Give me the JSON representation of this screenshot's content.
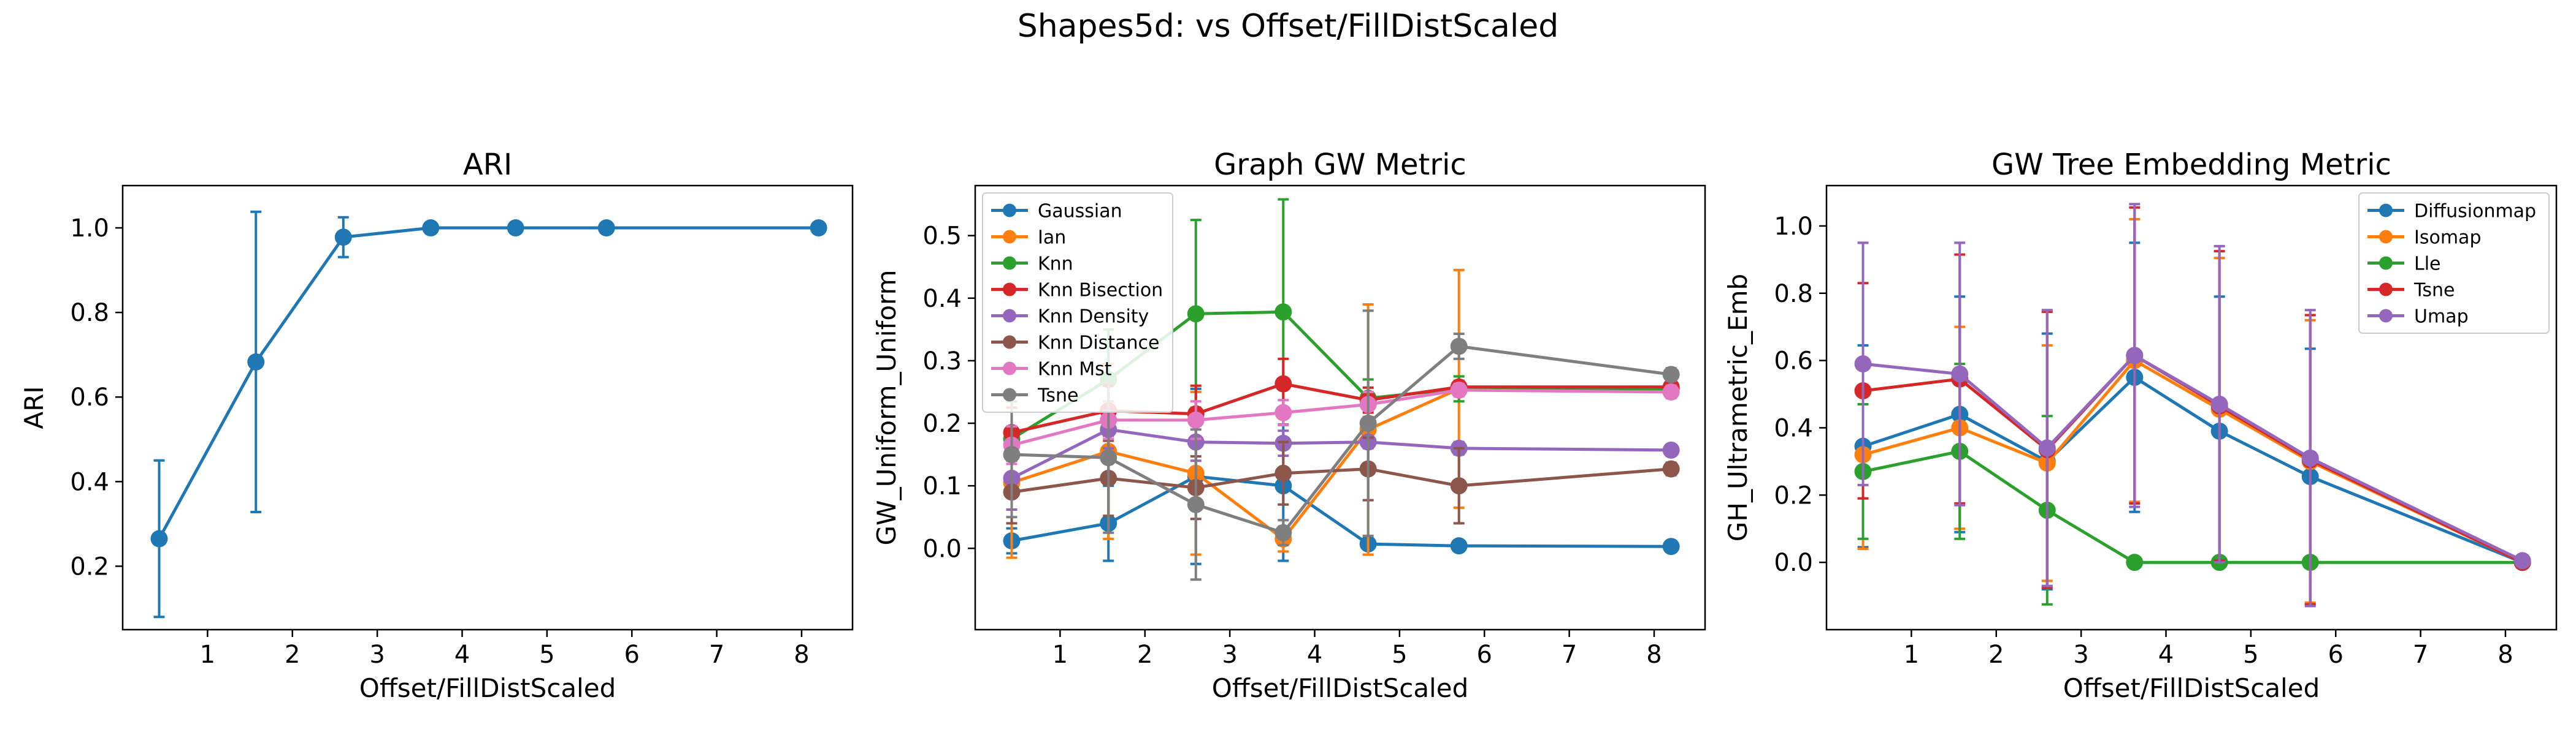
{
  "figure": {
    "suptitle": "Shapes5d: vs Offset/FillDistScaled"
  },
  "chart_data": [
    {
      "type": "line",
      "title": "ARI",
      "xlabel": "Offset/FillDistScaled",
      "ylabel": "ARI",
      "xlim": [
        0.0,
        8.6
      ],
      "ylim": [
        0.05,
        1.1
      ],
      "xticks": [
        1,
        2,
        3,
        4,
        5,
        6,
        7,
        8
      ],
      "yticks": [
        0.2,
        0.4,
        0.6,
        0.8,
        1.0
      ],
      "ytick_labels": [
        "0.2",
        "0.4",
        "0.6",
        "0.8",
        "1.0"
      ],
      "grid": false,
      "legend": null,
      "series": [
        {
          "color": "#1f77b4",
          "x": [
            0.43,
            1.57,
            2.6,
            3.63,
            4.63,
            5.7,
            8.2
          ],
          "y": [
            0.265,
            0.683,
            0.978,
            1.0,
            1.0,
            1.0,
            1.0
          ],
          "err": [
            0.185,
            0.355,
            0.047,
            0.0,
            0.0,
            0.0,
            0.0
          ]
        }
      ]
    },
    {
      "type": "line",
      "title": "Graph GW Metric",
      "xlabel": "Offset/FillDistScaled",
      "ylabel": "GW_Uniform_Uniform",
      "xlim": [
        0.0,
        8.6
      ],
      "ylim": [
        -0.13,
        0.58
      ],
      "xticks": [
        1,
        2,
        3,
        4,
        5,
        6,
        7,
        8
      ],
      "yticks": [
        0.0,
        0.1,
        0.2,
        0.3,
        0.4,
        0.5
      ],
      "ytick_labels": [
        "0.0",
        "0.1",
        "0.2",
        "0.3",
        "0.4",
        "0.5"
      ],
      "grid": false,
      "legend": "top-left",
      "series": [
        {
          "name": "Gaussian",
          "color": "#1f77b4",
          "x": [
            0.43,
            1.57,
            2.6,
            3.63,
            4.63,
            5.7,
            8.2
          ],
          "y": [
            0.012,
            0.04,
            0.115,
            0.1,
            0.007,
            0.004,
            0.003
          ],
          "err": [
            0.02,
            0.06,
            0.14,
            0.12,
            0.005,
            0.004,
            0.003
          ]
        },
        {
          "name": "Ian",
          "color": "#ff7f0e",
          "x": [
            0.43,
            1.57,
            2.6,
            3.63,
            4.63,
            5.7,
            8.2
          ],
          "y": [
            0.105,
            0.155,
            0.12,
            0.015,
            0.19,
            0.255,
            0.255
          ],
          "err": [
            0.12,
            0.14,
            0.13,
            0.02,
            0.2,
            0.19,
            0.01
          ]
        },
        {
          "name": "Knn",
          "color": "#2ca02c",
          "x": [
            0.43,
            1.57,
            2.6,
            3.63,
            4.63,
            5.7,
            8.2
          ],
          "y": [
            0.175,
            0.27,
            0.375,
            0.378,
            0.24,
            0.255,
            0.255
          ],
          "err": [
            0.06,
            0.08,
            0.15,
            0.18,
            0.03,
            0.02,
            0.01
          ]
        },
        {
          "name": "Knn Bisection",
          "color": "#d62728",
          "x": [
            0.43,
            1.57,
            2.6,
            3.63,
            4.63,
            5.7,
            8.2
          ],
          "y": [
            0.185,
            0.22,
            0.215,
            0.263,
            0.237,
            0.258,
            0.258
          ],
          "err": [
            0.04,
            0.04,
            0.045,
            0.04,
            0.02,
            0.01,
            0.01
          ]
        },
        {
          "name": "Knn Density",
          "color": "#9467bd",
          "x": [
            0.43,
            1.57,
            2.6,
            3.63,
            4.63,
            5.7,
            8.2
          ],
          "y": [
            0.112,
            0.19,
            0.17,
            0.168,
            0.17,
            0.16,
            0.157
          ],
          "err": [
            0.05,
            0.03,
            0.03,
            0.02,
            0.01,
            0.01,
            0.005
          ]
        },
        {
          "name": "Knn Distance",
          "color": "#8c564b",
          "x": [
            0.43,
            1.57,
            2.6,
            3.63,
            4.63,
            5.7,
            8.2
          ],
          "y": [
            0.09,
            0.112,
            0.097,
            0.12,
            0.127,
            0.1,
            0.127
          ],
          "err": [
            0.05,
            0.06,
            0.05,
            0.05,
            0.05,
            0.06,
            0.01
          ]
        },
        {
          "name": "Knn Mst",
          "color": "#e377c2",
          "x": [
            0.43,
            1.57,
            2.6,
            3.63,
            4.63,
            5.7,
            8.2
          ],
          "y": [
            0.165,
            0.205,
            0.205,
            0.217,
            0.23,
            0.253,
            0.25
          ],
          "err": [
            0.03,
            0.03,
            0.03,
            0.02,
            0.02,
            0.01,
            0.01
          ]
        },
        {
          "name": "Tsne",
          "color": "#7f7f7f",
          "x": [
            0.43,
            1.57,
            2.6,
            3.63,
            4.63,
            5.7,
            8.2
          ],
          "y": [
            0.15,
            0.145,
            0.07,
            0.025,
            0.2,
            0.323,
            0.278
          ],
          "err": [
            0.1,
            0.12,
            0.12,
            0.02,
            0.18,
            0.02,
            0.01
          ]
        }
      ]
    },
    {
      "type": "line",
      "title": "GW Tree Embedding Metric",
      "xlabel": "Offset/FillDistScaled",
      "ylabel": "GH_Ultrametric_Emb",
      "xlim": [
        0.0,
        8.6
      ],
      "ylim": [
        -0.2,
        1.12
      ],
      "xticks": [
        1,
        2,
        3,
        4,
        5,
        6,
        7,
        8
      ],
      "yticks": [
        0.0,
        0.2,
        0.4,
        0.6,
        0.8,
        1.0
      ],
      "ytick_labels": [
        "0.0",
        "0.2",
        "0.4",
        "0.6",
        "0.8",
        "1.0"
      ],
      "grid": false,
      "legend": "top-right",
      "series": [
        {
          "name": "Diffusionmap",
          "color": "#1f77b4",
          "x": [
            0.43,
            1.57,
            2.6,
            3.63,
            4.63,
            5.7,
            8.2
          ],
          "y": [
            0.345,
            0.44,
            0.3,
            0.55,
            0.39,
            0.255,
            0.0
          ],
          "err": [
            0.3,
            0.35,
            0.38,
            0.4,
            0.4,
            0.38,
            0.01
          ]
        },
        {
          "name": "Isomap",
          "color": "#ff7f0e",
          "x": [
            0.43,
            1.57,
            2.6,
            3.63,
            4.63,
            5.7,
            8.2
          ],
          "y": [
            0.32,
            0.4,
            0.295,
            0.6,
            0.455,
            0.3,
            0.0
          ],
          "err": [
            0.28,
            0.3,
            0.35,
            0.42,
            0.45,
            0.42,
            0.01
          ]
        },
        {
          "name": "Lle",
          "color": "#2ca02c",
          "x": [
            0.43,
            1.57,
            2.6,
            3.63,
            4.63,
            5.7,
            8.2
          ],
          "y": [
            0.27,
            0.33,
            0.155,
            0.0,
            0.0,
            0.0,
            0.0
          ],
          "err": [
            0.2,
            0.26,
            0.28,
            0.0,
            0.0,
            0.0,
            0.0
          ]
        },
        {
          "name": "Tsne",
          "color": "#d62728",
          "x": [
            0.43,
            1.57,
            2.6,
            3.63,
            4.63,
            5.7,
            8.2
          ],
          "y": [
            0.51,
            0.545,
            0.335,
            0.615,
            0.465,
            0.305,
            0.0
          ],
          "err": [
            0.32,
            0.37,
            0.41,
            0.44,
            0.46,
            0.43,
            0.01
          ]
        },
        {
          "name": "Umap",
          "color": "#9467bd",
          "x": [
            0.43,
            1.57,
            2.6,
            3.63,
            4.63,
            5.7,
            8.2
          ],
          "y": [
            0.59,
            0.56,
            0.34,
            0.615,
            0.47,
            0.31,
            0.005
          ],
          "err": [
            0.36,
            0.39,
            0.41,
            0.45,
            0.47,
            0.44,
            0.01
          ]
        }
      ]
    }
  ]
}
